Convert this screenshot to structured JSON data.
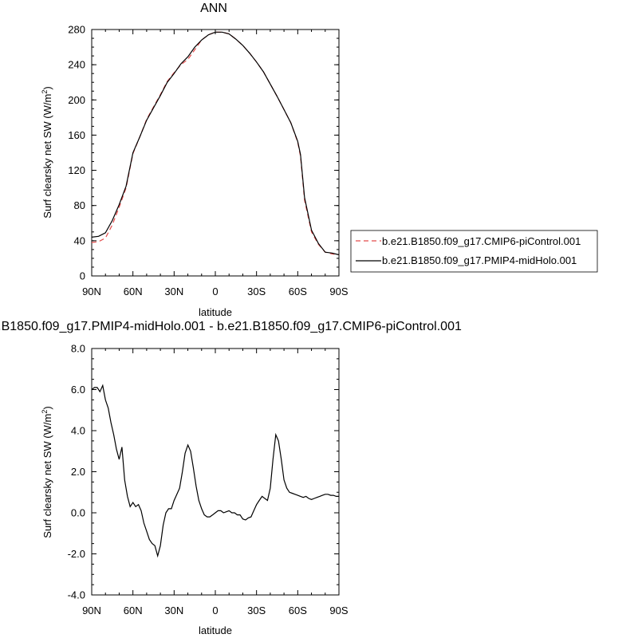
{
  "chart_data": [
    {
      "type": "line",
      "title": "ANN",
      "xlabel": "latitude",
      "ylabel": "Surf clearsky net SW (W/m",
      "ylabel_sup": "2",
      "ylabel_close": ")",
      "xlim": [
        90,
        -90
      ],
      "ylim": [
        0,
        280
      ],
      "xticks": [
        90,
        60,
        30,
        0,
        -30,
        -60,
        -90
      ],
      "xticklabels": [
        "90N",
        "60N",
        "30N",
        "0",
        "30S",
        "60S",
        "90S"
      ],
      "yticks": [
        0,
        40,
        80,
        120,
        160,
        200,
        240,
        280
      ],
      "yticklabels": [
        "0",
        "40",
        "80",
        "120",
        "160",
        "200",
        "240",
        "280"
      ],
      "grid": false,
      "legend_position": "right",
      "series": [
        {
          "name": "b.e21.B1850.f09_g17.CMIP6-piControl.001",
          "color": "#e34a4a",
          "dash": true,
          "x": [
            90,
            85,
            80,
            75,
            70,
            65,
            60,
            55,
            50,
            45,
            40,
            35,
            30,
            25,
            20,
            15,
            10,
            5,
            0,
            -5,
            -10,
            -15,
            -20,
            -25,
            -30,
            -35,
            -40,
            -45,
            -50,
            -55,
            -60,
            -62,
            -65,
            -70,
            -75,
            -80,
            -85,
            -90
          ],
          "values": [
            38,
            39,
            43,
            58,
            78,
            100,
            139,
            158,
            178,
            192,
            206,
            221,
            231,
            240,
            246,
            257,
            268,
            274,
            277,
            277,
            275,
            269,
            262,
            253,
            243,
            232,
            218,
            204,
            189,
            174,
            152,
            136,
            86,
            50,
            36,
            27,
            25,
            24
          ]
        },
        {
          "name": "b.e21.B1850.f09_g17.PMIP4-midHolo.001",
          "color": "#000000",
          "dash": false,
          "x": [
            90,
            85,
            80,
            75,
            70,
            65,
            60,
            55,
            50,
            45,
            40,
            35,
            30,
            25,
            20,
            15,
            10,
            5,
            0,
            -5,
            -10,
            -15,
            -20,
            -25,
            -30,
            -35,
            -40,
            -45,
            -50,
            -55,
            -60,
            -62,
            -65,
            -70,
            -75,
            -80,
            -85,
            -90
          ],
          "values": [
            44,
            45,
            49,
            63,
            81,
            102,
            140,
            158,
            177,
            191,
            205,
            220,
            230,
            241,
            249,
            260,
            268,
            274,
            277,
            277,
            275,
            269,
            262,
            253,
            243,
            232,
            218,
            204,
            189,
            174,
            153,
            138,
            89,
            52,
            37,
            27,
            26,
            24
          ]
        }
      ]
    },
    {
      "type": "line",
      "title": "b.e21.B1850.f09_g17.PMIP4-midHolo.001 - b.e21.B1850.f09_g17.CMIP6-piControl.001",
      "xlabel": "latitude",
      "ylabel": "Surf clearsky net SW (W/m",
      "ylabel_sup": "2",
      "ylabel_close": ")",
      "xlim": [
        90,
        -90
      ],
      "ylim": [
        -4,
        8
      ],
      "xticks": [
        90,
        60,
        30,
        0,
        -30,
        -60,
        -90
      ],
      "xticklabels": [
        "90N",
        "60N",
        "30N",
        "0",
        "30S",
        "60S",
        "90S"
      ],
      "yticks": [
        -4,
        -2,
        0,
        2,
        4,
        6,
        8
      ],
      "yticklabels": [
        "-4.0",
        "-2.0",
        "0.0",
        "2.0",
        "4.0",
        "6.0",
        "8.0"
      ],
      "grid": false,
      "series": [
        {
          "color": "#000000",
          "dash": false,
          "x": [
            90,
            88,
            86,
            84,
            82,
            80,
            78,
            76,
            74,
            72,
            70,
            68,
            66,
            64,
            62,
            60,
            58,
            56,
            54,
            52,
            50,
            48,
            46,
            44,
            42,
            40,
            38,
            36,
            34,
            32,
            30,
            28,
            26,
            24,
            22,
            20,
            18,
            16,
            14,
            12,
            10,
            8,
            6,
            4,
            2,
            0,
            -2,
            -4,
            -6,
            -8,
            -10,
            -12,
            -14,
            -16,
            -18,
            -20,
            -22,
            -24,
            -26,
            -28,
            -30,
            -32,
            -34,
            -36,
            -38,
            -40,
            -42,
            -44,
            -46,
            -48,
            -50,
            -52,
            -54,
            -56,
            -58,
            -60,
            -62,
            -64,
            -66,
            -68,
            -70,
            -72,
            -74,
            -76,
            -78,
            -80,
            -82,
            -84,
            -86,
            -88,
            -90
          ],
          "values": [
            6.0,
            6.1,
            6.1,
            5.9,
            6.2,
            5.5,
            5.1,
            4.4,
            3.8,
            3.1,
            2.6,
            3.2,
            1.6,
            0.8,
            0.3,
            0.5,
            0.3,
            0.4,
            0.1,
            -0.5,
            -0.9,
            -1.3,
            -1.5,
            -1.6,
            -2.1,
            -1.6,
            -0.6,
            0.0,
            0.2,
            0.2,
            0.6,
            0.9,
            1.2,
            2.0,
            2.9,
            3.3,
            3.0,
            2.2,
            1.3,
            0.6,
            0.2,
            -0.1,
            -0.2,
            -0.2,
            -0.1,
            0.0,
            0.1,
            0.1,
            0.0,
            0.05,
            0.1,
            0.0,
            0.0,
            -0.1,
            -0.1,
            -0.3,
            -0.35,
            -0.25,
            -0.2,
            0.1,
            0.4,
            0.6,
            0.8,
            0.7,
            0.6,
            1.2,
            2.6,
            3.8,
            3.5,
            2.6,
            1.6,
            1.2,
            1.0,
            0.95,
            0.9,
            0.85,
            0.8,
            0.75,
            0.8,
            0.7,
            0.65,
            0.7,
            0.75,
            0.8,
            0.85,
            0.9,
            0.9,
            0.85,
            0.85,
            0.8,
            0.8
          ]
        }
      ]
    }
  ]
}
